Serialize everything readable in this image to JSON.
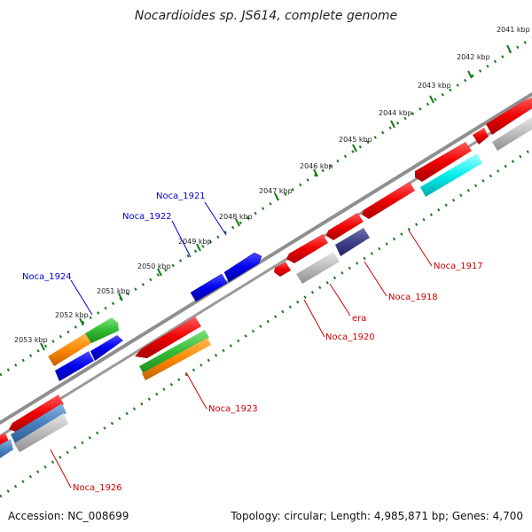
{
  "title": "Nocardioides sp. JS614, complete genome",
  "accession_text": "Accession: NC_008699",
  "summary_text": "Topology: circular; Length: 4,985,871 bp; Genes: 4,700",
  "colors": {
    "forward_label": "#0000cc",
    "reverse_label": "#cc0000",
    "backbone": "#8a8a8a",
    "tick": "#1a7a1a"
  },
  "ruler": {
    "unit_suffix": "kbp",
    "ticks": [
      "2041 kbp",
      "2042 kbp",
      "2043 kbp",
      "2044 kbp",
      "2045 kbp",
      "2046 kbp",
      "2047 kbp",
      "2048 kbp",
      "2049 kbp",
      "2050 kbp",
      "2051 kbp",
      "2052 kbp",
      "2053 kbp"
    ]
  },
  "forward_labels": [
    "Noca_1921",
    "Noca_1922",
    "Noca_1924"
  ],
  "reverse_labels": [
    "Noca_1917",
    "Noca_1918",
    "era",
    "Noca_1920",
    "Noca_1923",
    "Noca_1926"
  ]
}
